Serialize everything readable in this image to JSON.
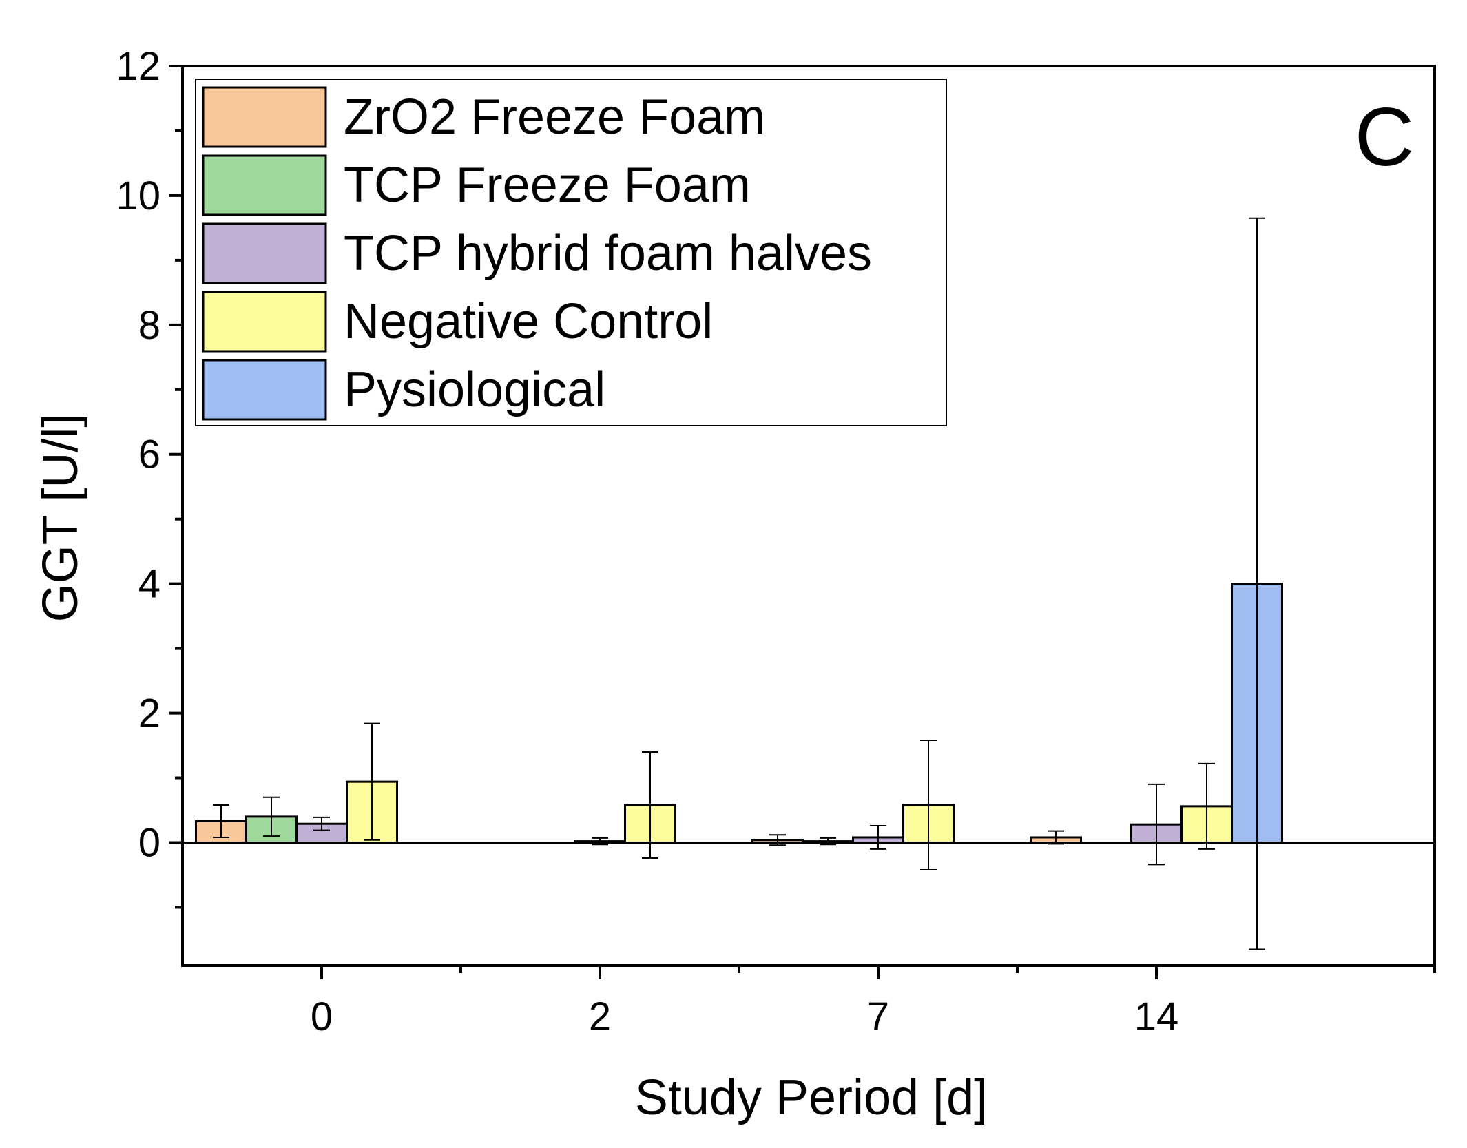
{
  "chart_data": {
    "type": "bar",
    "panel_label": "C",
    "xlabel": "Study Period [d]",
    "ylabel": "GGT [U/l]",
    "categories": [
      "0",
      "2",
      "7",
      "14"
    ],
    "ylim": [
      -1.9,
      12
    ],
    "yticks": [
      "0",
      "2",
      "4",
      "6",
      "8",
      "10",
      "12"
    ],
    "grid": false,
    "legend_position": "top-left",
    "series": [
      {
        "name": "ZrO2 Freeze Foam",
        "color": "#F9C89A",
        "values": [
          0.33,
          0.0,
          0.04,
          0.08
        ],
        "errors": [
          0.25,
          0.0,
          0.08,
          0.1
        ]
      },
      {
        "name": "TCP Freeze Foam",
        "color": "#9ED89B",
        "values": [
          0.4,
          0.0,
          0.02,
          0.0
        ],
        "errors": [
          0.3,
          0.0,
          0.05,
          0.0
        ]
      },
      {
        "name": "TCP hybrid foam halves",
        "color": "#C0B0D6",
        "values": [
          0.29,
          0.02,
          0.08,
          0.28
        ],
        "errors": [
          0.1,
          0.05,
          0.18,
          0.62
        ]
      },
      {
        "name": "Negative Control",
        "color": "#FDFD9E",
        "values": [
          0.94,
          0.58,
          0.58,
          0.56
        ],
        "errors": [
          0.9,
          0.82,
          1.0,
          0.66
        ]
      },
      {
        "name": "Pysiological",
        "color": "#9FBDF0",
        "values": [
          0.0,
          0.0,
          0.0,
          4.0
        ],
        "errors": [
          0.0,
          0.0,
          0.0,
          5.65
        ]
      }
    ]
  }
}
